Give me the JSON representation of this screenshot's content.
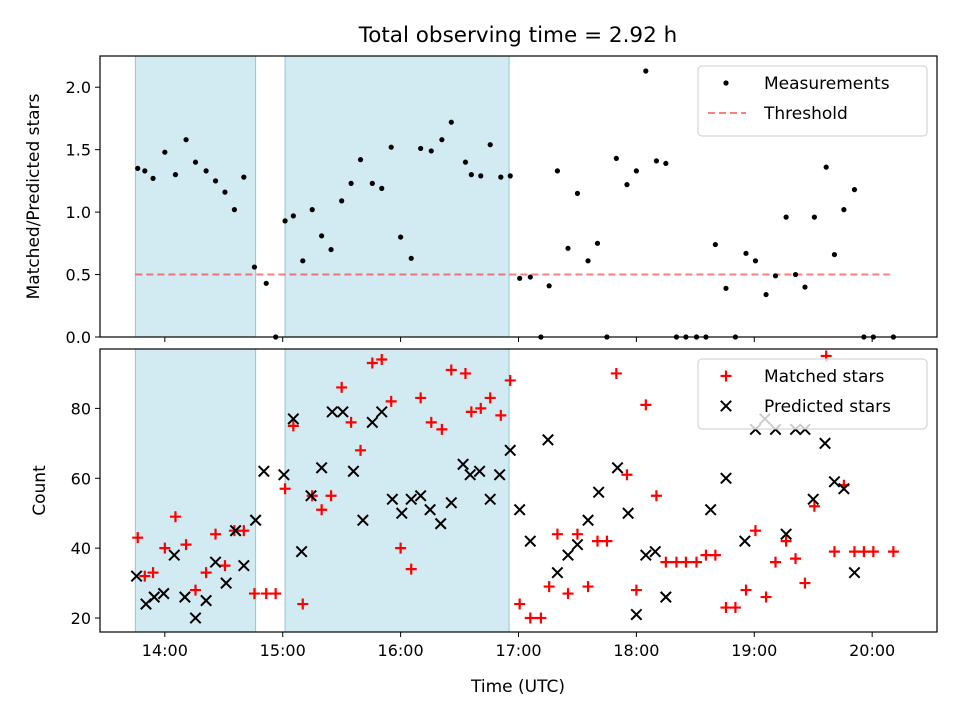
{
  "figure": {
    "title": "Total observing time = 2.92 h",
    "xlabel": "Time (UTC)",
    "xticks": [
      {
        "value": 14,
        "label": "14:00"
      },
      {
        "value": 15,
        "label": "15:00"
      },
      {
        "value": 16,
        "label": "16:00"
      },
      {
        "value": 17,
        "label": "17:00"
      },
      {
        "value": 18,
        "label": "18:00"
      },
      {
        "value": 19,
        "label": "19:00"
      },
      {
        "value": 20,
        "label": "20:00"
      }
    ],
    "xlim": [
      13.45,
      20.55
    ],
    "shaded_intervals": [
      [
        13.75,
        14.77
      ],
      [
        15.02,
        16.92
      ]
    ],
    "shade_color": "#add8e6"
  },
  "chart_data": [
    {
      "type": "scatter",
      "ylabel": "Matched/Predicted stars",
      "ylim": [
        0,
        2.25
      ],
      "yticks": [
        {
          "value": 0,
          "label": "0.0"
        },
        {
          "value": 0.5,
          "label": "0.5"
        },
        {
          "value": 1.0,
          "label": "1.0"
        },
        {
          "value": 1.5,
          "label": "1.5"
        },
        {
          "value": 2.0,
          "label": "2.0"
        }
      ],
      "legend_position": "top-right",
      "threshold": {
        "name": "Threshold",
        "y": 0.5,
        "x_range": [
          13.75,
          20.15
        ],
        "color": "#ff0000"
      },
      "series": [
        {
          "name": "Measurements",
          "marker": "dot",
          "color": "#000000",
          "x": [
            13.77,
            13.83,
            13.9,
            14.0,
            14.09,
            14.18,
            14.26,
            14.35,
            14.43,
            14.51,
            14.59,
            14.67,
            14.76,
            14.86,
            14.94,
            15.02,
            15.09,
            15.17,
            15.25,
            15.33,
            15.41,
            15.5,
            15.58,
            15.66,
            15.76,
            15.84,
            15.92,
            16.0,
            16.09,
            16.17,
            16.26,
            16.35,
            16.43,
            16.55,
            16.6,
            16.68,
            16.76,
            16.85,
            16.93,
            17.01,
            17.1,
            17.19,
            17.26,
            17.33,
            17.42,
            17.5,
            17.59,
            17.67,
            17.75,
            17.83,
            17.92,
            18.0,
            18.08,
            18.17,
            18.25,
            18.34,
            18.42,
            18.51,
            18.59,
            18.67,
            18.76,
            18.84,
            18.93,
            19.01,
            19.1,
            19.18,
            19.27,
            19.35,
            19.43,
            19.51,
            19.61,
            19.68,
            19.76,
            19.85,
            19.93,
            20.01,
            20.18
          ],
          "y": [
            1.35,
            1.33,
            1.27,
            1.48,
            1.3,
            1.58,
            1.4,
            1.33,
            1.25,
            1.16,
            1.02,
            1.28,
            0.56,
            0.43,
            0.0,
            0.93,
            0.97,
            0.61,
            1.02,
            0.81,
            0.7,
            1.09,
            1.23,
            1.42,
            1.23,
            1.19,
            1.52,
            0.8,
            0.63,
            1.51,
            1.49,
            1.58,
            1.72,
            1.4,
            1.3,
            1.29,
            1.54,
            1.28,
            1.29,
            0.47,
            0.48,
            0.0,
            0.41,
            1.33,
            0.71,
            1.15,
            0.61,
            0.75,
            0.0,
            1.43,
            1.22,
            1.33,
            2.13,
            1.41,
            1.39,
            0.0,
            0.0,
            0.0,
            0.0,
            0.74,
            0.39,
            0.0,
            0.67,
            0.61,
            0.34,
            0.49,
            0.96,
            0.5,
            0.4,
            0.96,
            1.36,
            0.66,
            1.02,
            1.18,
            0.0,
            0.0,
            0.0
          ]
        }
      ]
    },
    {
      "type": "scatter",
      "ylabel": "Count",
      "ylim": [
        16,
        97
      ],
      "yticks": [
        {
          "value": 20,
          "label": "20"
        },
        {
          "value": 40,
          "label": "40"
        },
        {
          "value": 60,
          "label": "60"
        },
        {
          "value": 80,
          "label": "80"
        }
      ],
      "legend_position": "top-right",
      "series": [
        {
          "name": "Matched stars",
          "marker": "plus",
          "color": "#ff0000",
          "x": [
            13.77,
            13.83,
            13.9,
            14.0,
            14.09,
            14.18,
            14.26,
            14.35,
            14.43,
            14.51,
            14.59,
            14.67,
            14.76,
            14.86,
            14.94,
            15.02,
            15.09,
            15.17,
            15.25,
            15.33,
            15.41,
            15.5,
            15.58,
            15.66,
            15.76,
            15.84,
            15.92,
            16.0,
            16.09,
            16.17,
            16.26,
            16.35,
            16.43,
            16.55,
            16.6,
            16.68,
            16.76,
            16.85,
            16.93,
            17.01,
            17.1,
            17.19,
            17.26,
            17.33,
            17.42,
            17.5,
            17.59,
            17.67,
            17.75,
            17.83,
            17.92,
            18.0,
            18.08,
            18.17,
            18.25,
            18.34,
            18.42,
            18.51,
            18.59,
            18.67,
            18.76,
            18.84,
            18.93,
            19.01,
            19.1,
            19.18,
            19.27,
            19.35,
            19.43,
            19.51,
            19.61,
            19.68,
            19.76,
            19.85,
            19.93,
            20.01,
            20.18
          ],
          "y": [
            43,
            32,
            33,
            40,
            49,
            41,
            28,
            33,
            44,
            35,
            45,
            45,
            27,
            27,
            27,
            57,
            75,
            24,
            55,
            51,
            55,
            86,
            76,
            68,
            93,
            94,
            82,
            40,
            34,
            83,
            76,
            74,
            91,
            90,
            79,
            80,
            83,
            78,
            88,
            24,
            20,
            20,
            29,
            44,
            27,
            44,
            29,
            42,
            42,
            90,
            61,
            28,
            81,
            55,
            36,
            36,
            36,
            36,
            38,
            38,
            23,
            23,
            28,
            45,
            26,
            36,
            42,
            37,
            30,
            52,
            95,
            39,
            58,
            39,
            39,
            39,
            39
          ]
        },
        {
          "name": "Predicted stars",
          "marker": "x",
          "color": "#000000",
          "x": [
            13.76,
            13.84,
            13.91,
            13.99,
            14.08,
            14.17,
            14.26,
            14.35,
            14.43,
            14.52,
            14.6,
            14.67,
            14.77,
            14.84,
            15.01,
            15.09,
            15.16,
            15.24,
            15.33,
            15.42,
            15.51,
            15.6,
            15.68,
            15.76,
            15.84,
            15.93,
            16.01,
            16.09,
            16.17,
            16.25,
            16.34,
            16.43,
            16.53,
            16.59,
            16.67,
            16.76,
            16.84,
            16.93,
            17.01,
            17.1,
            17.25,
            17.33,
            17.42,
            17.5,
            17.59,
            17.68,
            17.84,
            17.93,
            18.0,
            18.08,
            18.16,
            18.25,
            18.63,
            18.76,
            18.92,
            19.01,
            19.09,
            19.18,
            19.27,
            19.35,
            19.43,
            19.5,
            19.6,
            19.68,
            19.76,
            19.85
          ],
          "y": [
            32,
            24,
            26,
            27,
            38,
            26,
            20,
            25,
            36,
            30,
            45,
            35,
            48,
            62,
            61,
            77,
            39,
            55,
            63,
            79,
            79,
            62,
            48,
            76,
            79,
            54,
            50,
            54,
            55,
            51,
            47,
            53,
            64,
            61,
            62,
            54,
            61,
            68,
            51,
            42,
            71,
            33,
            38,
            41,
            48,
            56,
            63,
            50,
            21,
            38,
            39,
            26,
            51,
            60,
            42,
            74,
            77,
            74,
            44,
            74,
            74,
            54,
            70,
            59,
            57,
            33
          ]
        }
      ]
    }
  ]
}
